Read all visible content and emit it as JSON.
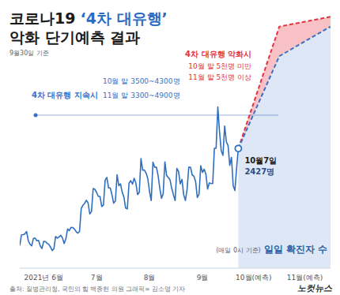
{
  "chart_data": {
    "type": "line",
    "title": [
      "코로나19",
      "‘4차 대유행’",
      "악화 단기예측 결과"
    ],
    "subtitle": "9월30일 기준",
    "source": "출처: 질병관리청, 국민의 힘 백종헌 의원 그래픽= 김소영 기자",
    "credit": "노컷뉴스",
    "xlim": [
      0,
      182
    ],
    "xticks": [
      {
        "value": 14,
        "label": "2021년 6월"
      },
      {
        "value": 45,
        "label": "7월"
      },
      {
        "value": 76,
        "label": "8월"
      },
      {
        "value": 107,
        "label": "9월"
      },
      {
        "value": 137,
        "label": "10월(예측)"
      },
      {
        "value": 167,
        "label": "11월(예측)"
      }
    ],
    "ylim": [
      0,
      5200
    ],
    "grid": false,
    "tick_labels": "x",
    "annotations": [
      {
        "text": "10월7일",
        "x": 128,
        "y": 2427
      }
    ],
    "series": [
      {
        "name": "일일 확진자 수",
        "notes": [
          "(매일 0시 기준)"
        ],
        "color": "#2f6fbf",
        "line_style": "solid",
        "x": [
          0,
          1,
          2,
          3,
          4,
          5,
          6,
          7,
          8,
          9,
          10,
          11,
          12,
          13,
          14,
          15,
          16,
          17,
          18,
          19,
          20,
          21,
          22,
          23,
          24,
          25,
          26,
          27,
          28,
          29,
          30,
          31,
          32,
          33,
          34,
          35,
          36,
          37,
          38,
          39,
          40,
          41,
          42,
          43,
          44,
          45,
          46,
          47,
          48,
          49,
          50,
          51,
          52,
          53,
          54,
          55,
          56,
          57,
          58,
          59,
          60,
          61,
          62,
          63,
          64,
          65,
          66,
          67,
          68,
          69,
          70,
          71,
          72,
          73,
          74,
          75,
          76,
          77,
          78,
          79,
          80,
          81,
          82,
          83,
          84,
          85,
          86,
          87,
          88,
          89,
          90,
          91,
          92,
          93,
          94,
          95,
          96,
          97,
          98,
          99,
          100,
          101,
          102,
          103,
          104,
          105,
          106,
          107,
          108,
          109,
          110,
          111,
          112,
          113,
          114,
          115,
          116,
          117,
          118,
          119,
          120,
          121,
          122,
          123,
          124,
          125,
          126,
          127,
          128
        ],
        "values": [
          459,
          677,
          681,
          695,
          744,
          556,
          485,
          454,
          602,
          611,
          556,
          565,
          452,
          399,
          545,
          540,
          507,
          482,
          429,
          357,
          395,
          645,
          610,
          634,
          668,
          614,
          501,
          595,
          794,
          762,
          826,
          825,
          794,
          743,
          711,
          746,
          1212,
          1275,
          1316,
          1378,
          1324,
          1100,
          1150,
          1615,
          1600,
          1536,
          1455,
          1454,
          1252,
          1278,
          1784,
          1842,
          1630,
          1629,
          1487,
          1318,
          1365,
          1896,
          1674,
          1710,
          1539,
          1442,
          1219,
          1202,
          1725,
          1776,
          1704,
          1823,
          1728,
          1492,
          1540,
          2223,
          1987,
          1990,
          1928,
          1816,
          1556,
          1372,
          2152,
          2050,
          2052,
          1882,
          1626,
          1418,
          1508,
          2155,
          1882,
          1841,
          1793,
          1619,
          1487,
          1372,
          2025,
          1961,
          1709,
          1804,
          1490,
          1375,
          1597,
          2050,
          2049,
          1892,
          1865,
          1755,
          1433,
          1497,
          2080,
          1943,
          2008,
          1910,
          1604,
          1729,
          1720,
          1716,
          2431,
          2434,
          3272,
          2769,
          2383,
          2289,
          2885,
          2564,
          2486,
          2085,
          2248,
          1673,
          1575,
          2028,
          2427
        ],
        "value_labels": [
          null,
          null,
          null,
          null,
          null,
          null,
          null,
          null,
          null,
          null,
          null,
          null,
          null,
          null,
          null,
          null,
          null,
          null,
          null,
          null,
          null,
          null,
          null,
          null,
          null,
          null,
          null,
          null,
          null,
          null,
          null,
          null,
          null,
          null,
          null,
          null,
          null,
          null,
          null,
          null,
          null,
          null,
          null,
          null,
          null,
          null,
          null,
          null,
          null,
          null,
          null,
          null,
          null,
          null,
          null,
          null,
          null,
          null,
          null,
          null,
          null,
          null,
          null,
          null,
          null,
          null,
          null,
          null,
          null,
          null,
          null,
          null,
          null,
          null,
          null,
          null,
          null,
          null,
          null,
          null,
          null,
          null,
          null,
          null,
          null,
          null,
          null,
          null,
          null,
          null,
          null,
          null,
          null,
          null,
          null,
          null,
          null,
          null,
          null,
          null,
          null,
          null,
          null,
          null,
          null,
          null,
          null,
          null,
          null,
          null,
          null,
          null,
          null,
          null,
          null,
          null,
          null,
          null,
          null,
          null,
          null,
          null,
          null,
          null,
          null,
          null,
          null,
          null,
          "2427명"
        ]
      },
      {
        "name": "4차 대유행 악화시",
        "notes": [
          "10월 말 5천명 미만",
          "11월 말 5천명 이상"
        ],
        "color": "#e5313f",
        "line_style": "dashed",
        "x": [
          128,
          152,
          182
        ],
        "values": [
          2427,
          4900,
          5100
        ]
      },
      {
        "name": "4차 대유행 지속시",
        "notes": [
          "10월 말 3500~4300명",
          "11월 말 3300~4900명"
        ],
        "color": "#3b6fc6",
        "line_style": "dashed",
        "x": [
          128,
          152,
          182
        ],
        "values": [
          2427,
          4300,
          4900
        ]
      }
    ]
  }
}
